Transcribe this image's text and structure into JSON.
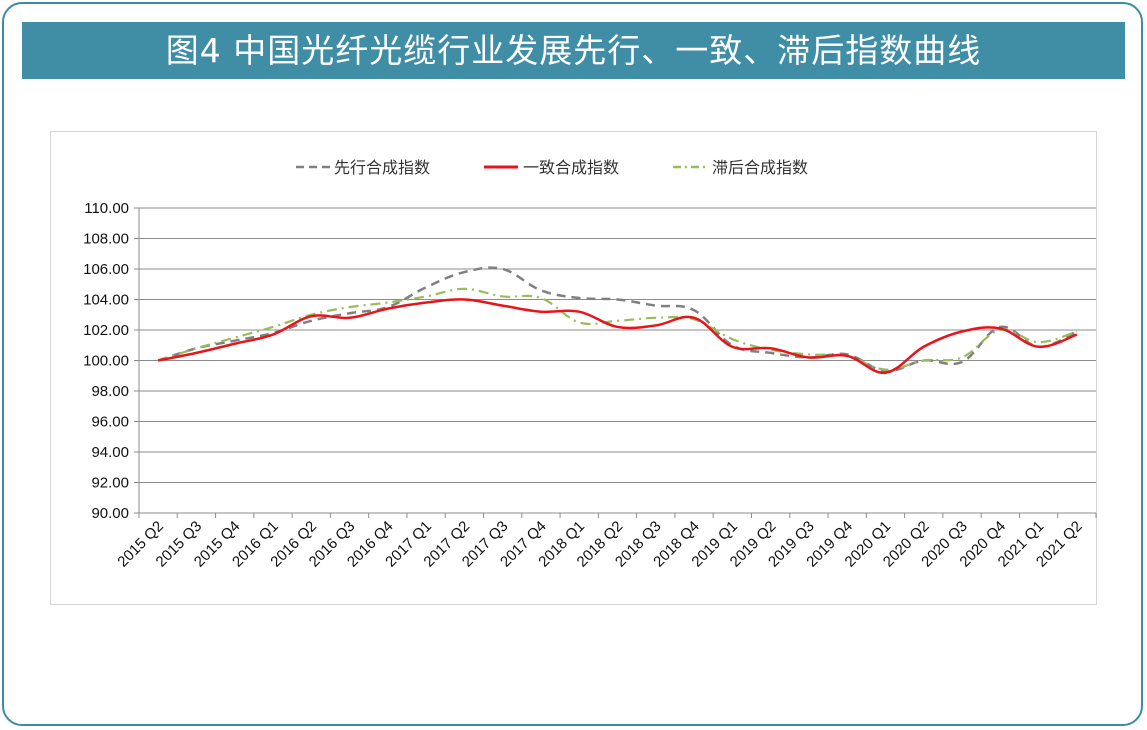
{
  "title": "图4  中国光纤光缆行业发展先行、一致、滞后指数曲线",
  "chart_data": {
    "type": "line",
    "categories": [
      "2015 Q2",
      "2015 Q3",
      "2015 Q4",
      "2016 Q1",
      "2016 Q2",
      "2016 Q3",
      "2016 Q4",
      "2017 Q1",
      "2017 Q2",
      "2017 Q3",
      "2017 Q4",
      "2018 Q1",
      "2018 Q2",
      "2018 Q3",
      "2018 Q4",
      "2019 Q1",
      "2019 Q2",
      "2019 Q3",
      "2019 Q4",
      "2020 Q1",
      "2020 Q2",
      "2020 Q3",
      "2020 Q4",
      "2021 Q1",
      "2021 Q2"
    ],
    "ylim": [
      90,
      110
    ],
    "yticks": [
      "90.00",
      "92.00",
      "94.00",
      "96.00",
      "98.00",
      "100.00",
      "102.00",
      "104.00",
      "106.00",
      "108.00",
      "110.00"
    ],
    "grid": true,
    "legend_position": "top",
    "series": [
      {
        "name": "先行合成指数",
        "style": "dashed",
        "color": "#808080",
        "values": [
          100.0,
          100.8,
          101.3,
          101.8,
          102.6,
          103.1,
          103.5,
          104.8,
          105.8,
          106.0,
          104.6,
          104.1,
          104.0,
          103.6,
          103.3,
          101.0,
          100.5,
          100.2,
          100.4,
          99.3,
          100.0,
          99.9,
          102.2,
          100.9,
          101.9
        ]
      },
      {
        "name": "一致合成指数",
        "style": "solid",
        "color": "#e8141b",
        "values": [
          100.0,
          100.5,
          101.1,
          101.7,
          102.9,
          102.8,
          103.4,
          103.8,
          104.0,
          103.6,
          103.2,
          103.2,
          102.2,
          102.3,
          102.8,
          100.9,
          100.8,
          100.2,
          100.3,
          99.2,
          100.9,
          101.9,
          102.1,
          100.9,
          101.7
        ]
      },
      {
        "name": "滞后合成指数",
        "style": "dash-dot",
        "color": "#9bbb59",
        "values": [
          100.0,
          100.8,
          101.5,
          102.2,
          103.0,
          103.5,
          103.8,
          104.2,
          104.7,
          104.2,
          104.1,
          102.5,
          102.6,
          102.8,
          102.7,
          101.4,
          100.7,
          100.4,
          100.3,
          99.4,
          100.0,
          100.2,
          102.0,
          101.2,
          101.9
        ]
      }
    ]
  }
}
